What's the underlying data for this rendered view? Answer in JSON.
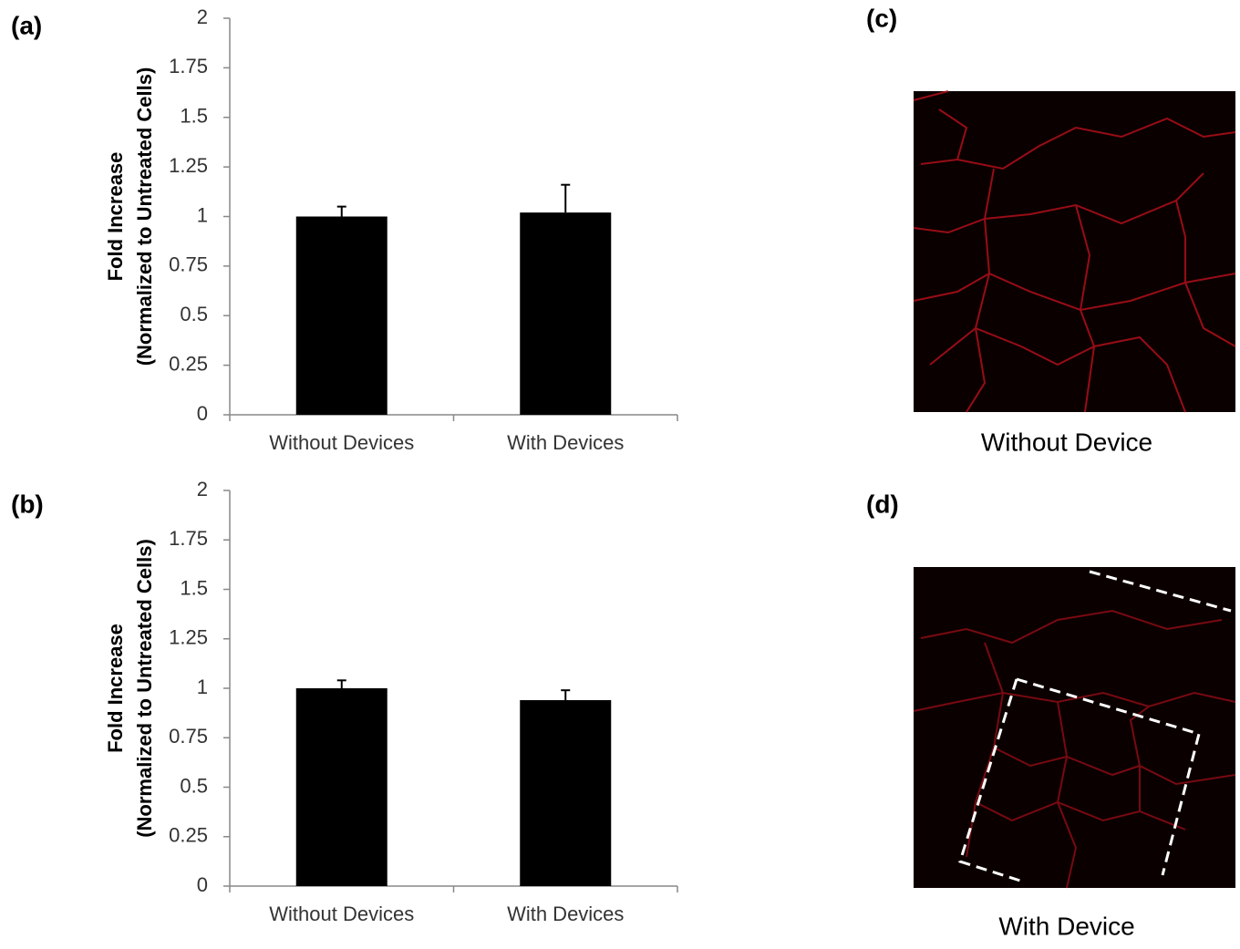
{
  "chart_data": [
    {
      "type": "bar",
      "panel_label": "(a)",
      "ylabel": [
        "Fold Increase",
        "(Normalized to Untreated Cells)"
      ],
      "categories": [
        "Without Devices",
        "With Devices"
      ],
      "values": [
        1.0,
        1.02
      ],
      "errors": [
        0.05,
        0.14
      ],
      "color": "#000000",
      "ylim": [
        0,
        2
      ],
      "yticks": [
        0,
        0.25,
        0.5,
        0.75,
        1,
        1.25,
        1.5,
        1.75,
        2
      ]
    },
    {
      "type": "bar",
      "panel_label": "(b)",
      "ylabel": [
        "Fold Increase",
        "(Normalized to Untreated Cells)"
      ],
      "categories": [
        "Without Devices",
        "With Devices"
      ],
      "values": [
        1.0,
        0.94
      ],
      "errors": [
        0.04,
        0.05
      ],
      "color": "#000000",
      "ylim": [
        0,
        2
      ],
      "yticks": [
        0,
        0.25,
        0.5,
        0.75,
        1,
        1.25,
        1.5,
        1.75,
        2
      ]
    }
  ],
  "panels": [
    {
      "label": "(c)",
      "caption": "Without Device"
    },
    {
      "label": "(d)",
      "caption": "With Device"
    }
  ]
}
